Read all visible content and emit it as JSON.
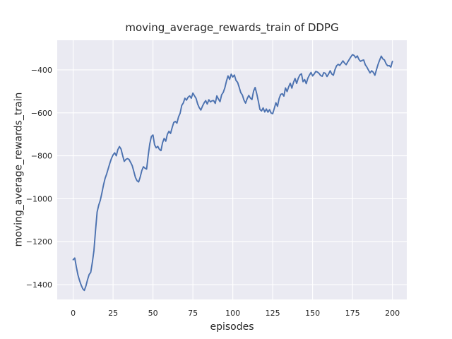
{
  "chart_data": {
    "type": "line",
    "title": "moving_average_rewards_train of DDPG",
    "xlabel": "episodes",
    "ylabel": "moving_average_rewards_train",
    "legend": false,
    "grid": true,
    "xlim": [
      -10,
      209
    ],
    "ylim": [
      -1469,
      -262
    ],
    "xticks": [
      0,
      25,
      50,
      75,
      100,
      125,
      150,
      175,
      200
    ],
    "xticklabels": [
      "0",
      "25",
      "50",
      "75",
      "100",
      "125",
      "150",
      "175",
      "200"
    ],
    "yticks": [
      -1400,
      -1200,
      -1000,
      -800,
      -600,
      -400
    ],
    "yticklabels": [
      "−1400",
      "−1200",
      "−1000",
      "−800",
      "−600",
      "−400"
    ],
    "colors": {
      "figure_bg": "#ffffff",
      "plot_bg": "#eaeaf2",
      "grid": "#ffffff",
      "line": "#4c72b0",
      "text": "#262626"
    },
    "series_name": "moving_average_rewards_train",
    "points": [
      [
        0,
        -1284
      ],
      [
        1,
        -1276
      ],
      [
        2,
        -1318
      ],
      [
        3,
        -1355
      ],
      [
        4,
        -1381
      ],
      [
        5,
        -1402
      ],
      [
        6,
        -1419
      ],
      [
        7,
        -1427
      ],
      [
        8,
        -1406
      ],
      [
        9,
        -1377
      ],
      [
        10,
        -1353
      ],
      [
        11,
        -1343
      ],
      [
        12,
        -1297
      ],
      [
        13,
        -1242
      ],
      [
        14,
        -1148
      ],
      [
        15,
        -1062
      ],
      [
        16,
        -1030
      ],
      [
        17,
        -1007
      ],
      [
        18,
        -973
      ],
      [
        19,
        -936
      ],
      [
        20,
        -905
      ],
      [
        21,
        -884
      ],
      [
        22,
        -859
      ],
      [
        23,
        -834
      ],
      [
        24,
        -812
      ],
      [
        25,
        -796
      ],
      [
        26,
        -786
      ],
      [
        27,
        -800
      ],
      [
        28,
        -771
      ],
      [
        29,
        -757
      ],
      [
        30,
        -769
      ],
      [
        31,
        -799
      ],
      [
        32,
        -826
      ],
      [
        33,
        -817
      ],
      [
        34,
        -813
      ],
      [
        35,
        -817
      ],
      [
        36,
        -831
      ],
      [
        37,
        -846
      ],
      [
        38,
        -873
      ],
      [
        39,
        -901
      ],
      [
        40,
        -916
      ],
      [
        41,
        -922
      ],
      [
        42,
        -899
      ],
      [
        43,
        -869
      ],
      [
        44,
        -851
      ],
      [
        45,
        -858
      ],
      [
        46,
        -862
      ],
      [
        47,
        -799
      ],
      [
        48,
        -744
      ],
      [
        49,
        -710
      ],
      [
        50,
        -703
      ],
      [
        51,
        -749
      ],
      [
        52,
        -763
      ],
      [
        53,
        -756
      ],
      [
        54,
        -770
      ],
      [
        55,
        -776
      ],
      [
        56,
        -739
      ],
      [
        57,
        -719
      ],
      [
        58,
        -732
      ],
      [
        59,
        -700
      ],
      [
        60,
        -686
      ],
      [
        61,
        -696
      ],
      [
        62,
        -669
      ],
      [
        63,
        -645
      ],
      [
        64,
        -640
      ],
      [
        65,
        -648
      ],
      [
        66,
        -619
      ],
      [
        67,
        -602
      ],
      [
        68,
        -566
      ],
      [
        69,
        -554
      ],
      [
        70,
        -532
      ],
      [
        71,
        -541
      ],
      [
        72,
        -527
      ],
      [
        73,
        -521
      ],
      [
        74,
        -532
      ],
      [
        75,
        -508
      ],
      [
        76,
        -521
      ],
      [
        77,
        -533
      ],
      [
        78,
        -559
      ],
      [
        79,
        -576
      ],
      [
        80,
        -587
      ],
      [
        81,
        -569
      ],
      [
        82,
        -554
      ],
      [
        83,
        -543
      ],
      [
        84,
        -559
      ],
      [
        85,
        -539
      ],
      [
        86,
        -549
      ],
      [
        87,
        -544
      ],
      [
        88,
        -543
      ],
      [
        89,
        -556
      ],
      [
        90,
        -521
      ],
      [
        91,
        -536
      ],
      [
        92,
        -548
      ],
      [
        93,
        -516
      ],
      [
        94,
        -505
      ],
      [
        95,
        -484
      ],
      [
        96,
        -453
      ],
      [
        97,
        -428
      ],
      [
        98,
        -444
      ],
      [
        99,
        -420
      ],
      [
        100,
        -433
      ],
      [
        101,
        -424
      ],
      [
        102,
        -449
      ],
      [
        103,
        -458
      ],
      [
        104,
        -481
      ],
      [
        105,
        -506
      ],
      [
        106,
        -517
      ],
      [
        107,
        -541
      ],
      [
        108,
        -555
      ],
      [
        109,
        -534
      ],
      [
        110,
        -519
      ],
      [
        111,
        -531
      ],
      [
        112,
        -538
      ],
      [
        113,
        -499
      ],
      [
        114,
        -482
      ],
      [
        115,
        -511
      ],
      [
        116,
        -546
      ],
      [
        117,
        -584
      ],
      [
        118,
        -591
      ],
      [
        119,
        -577
      ],
      [
        120,
        -596
      ],
      [
        121,
        -582
      ],
      [
        122,
        -597
      ],
      [
        123,
        -585
      ],
      [
        124,
        -601
      ],
      [
        125,
        -604
      ],
      [
        126,
        -579
      ],
      [
        127,
        -553
      ],
      [
        128,
        -570
      ],
      [
        129,
        -534
      ],
      [
        130,
        -514
      ],
      [
        131,
        -511
      ],
      [
        132,
        -522
      ],
      [
        133,
        -484
      ],
      [
        134,
        -501
      ],
      [
        135,
        -479
      ],
      [
        136,
        -462
      ],
      [
        137,
        -485
      ],
      [
        138,
        -459
      ],
      [
        139,
        -440
      ],
      [
        140,
        -463
      ],
      [
        141,
        -439
      ],
      [
        142,
        -424
      ],
      [
        143,
        -418
      ],
      [
        144,
        -455
      ],
      [
        145,
        -445
      ],
      [
        146,
        -464
      ],
      [
        147,
        -439
      ],
      [
        148,
        -424
      ],
      [
        149,
        -412
      ],
      [
        150,
        -428
      ],
      [
        151,
        -419
      ],
      [
        152,
        -407
      ],
      [
        153,
        -410
      ],
      [
        154,
        -416
      ],
      [
        155,
        -426
      ],
      [
        156,
        -430
      ],
      [
        157,
        -413
      ],
      [
        158,
        -416
      ],
      [
        159,
        -431
      ],
      [
        160,
        -419
      ],
      [
        161,
        -404
      ],
      [
        162,
        -419
      ],
      [
        163,
        -425
      ],
      [
        164,
        -399
      ],
      [
        165,
        -381
      ],
      [
        166,
        -374
      ],
      [
        167,
        -379
      ],
      [
        168,
        -369
      ],
      [
        169,
        -358
      ],
      [
        170,
        -368
      ],
      [
        171,
        -376
      ],
      [
        172,
        -363
      ],
      [
        173,
        -351
      ],
      [
        174,
        -339
      ],
      [
        175,
        -329
      ],
      [
        176,
        -333
      ],
      [
        177,
        -343
      ],
      [
        178,
        -335
      ],
      [
        179,
        -351
      ],
      [
        180,
        -360
      ],
      [
        181,
        -356
      ],
      [
        182,
        -354
      ],
      [
        183,
        -376
      ],
      [
        184,
        -387
      ],
      [
        185,
        -401
      ],
      [
        186,
        -414
      ],
      [
        187,
        -404
      ],
      [
        188,
        -411
      ],
      [
        189,
        -425
      ],
      [
        190,
        -399
      ],
      [
        191,
        -374
      ],
      [
        192,
        -354
      ],
      [
        193,
        -336
      ],
      [
        194,
        -349
      ],
      [
        195,
        -354
      ],
      [
        196,
        -371
      ],
      [
        197,
        -381
      ],
      [
        198,
        -380
      ],
      [
        199,
        -387
      ],
      [
        200,
        -360
      ]
    ]
  }
}
